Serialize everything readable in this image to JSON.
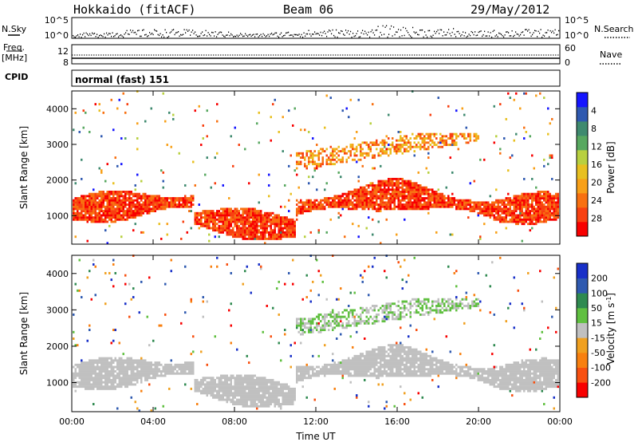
{
  "header": {
    "title": "Hokkaido (fitACF)",
    "beam": "Beam 06",
    "date": "29/May/2012"
  },
  "top_strip": {
    "left_label": "N.Sky",
    "right_label": "N.Search",
    "ticks_left": [
      "10^5",
      "10^0"
    ],
    "ticks_right": [
      "10^5",
      "10^0"
    ]
  },
  "freq_strip": {
    "left_label": "Freq.",
    "left_unit": "[MHz]",
    "left_ticks": [
      "12",
      "8"
    ],
    "right_label": "Nave",
    "right_ticks": [
      "60",
      "0"
    ]
  },
  "cpid": {
    "label": "CPID",
    "value": "normal (fast) 151"
  },
  "chart_data": [
    {
      "type": "heatmap",
      "name": "Power",
      "ylabel": "Slant Range [km]",
      "ylim": [
        200,
        4500
      ],
      "yticks": [
        1000,
        2000,
        3000,
        4000
      ],
      "xlim": [
        0,
        24
      ],
      "xticks": [
        "00:00",
        "04:00",
        "08:00",
        "12:00",
        "16:00",
        "20:00",
        "00:00"
      ],
      "colorbar": {
        "label": "Power [dB]",
        "ticks": [
          "4",
          "8",
          "12",
          "16",
          "20",
          "24",
          "28"
        ],
        "colors": [
          "#1515ff",
          "#2f59b0",
          "#3f8a6f",
          "#58a860",
          "#b8d040",
          "#e8c020",
          "#f8a018",
          "#f87010",
          "#f84010",
          "#f80000"
        ]
      }
    },
    {
      "type": "heatmap",
      "name": "Velocity",
      "ylabel": "Slant Range [km]",
      "ylim": [
        200,
        4500
      ],
      "yticks": [
        1000,
        2000,
        3000,
        4000
      ],
      "xlim": [
        0,
        24
      ],
      "xticks": [
        "00:00",
        "04:00",
        "08:00",
        "12:00",
        "16:00",
        "20:00",
        "00:00"
      ],
      "xlabel": "Time UT",
      "colorbar": {
        "label": "Velocity [m s",
        "label_sup": "-1",
        "label_end": "]",
        "ticks": [
          "200",
          "100",
          "50",
          "15",
          "-15",
          "-50",
          "-100",
          "-200"
        ],
        "colors": [
          "#1830c8",
          "#2f5ab0",
          "#2f8a50",
          "#60c040",
          "#c0c0c0",
          "#f0a020",
          "#f88010",
          "#f85010",
          "#f80000"
        ]
      }
    }
  ]
}
